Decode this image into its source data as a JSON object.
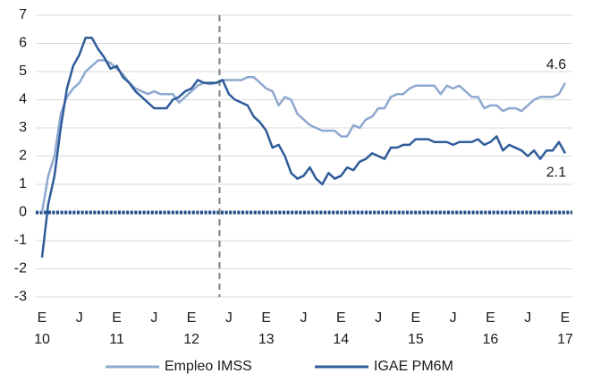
{
  "chart_data": {
    "type": "line",
    "categories": [
      "E",
      null,
      null,
      null,
      null,
      null,
      "J",
      null,
      null,
      null,
      null,
      null,
      "E",
      null,
      null,
      null,
      null,
      null,
      "J",
      null,
      null,
      null,
      null,
      null,
      "E",
      null,
      null,
      null,
      null,
      null,
      "J",
      null,
      null,
      null,
      null,
      null,
      "E",
      null,
      null,
      null,
      null,
      null,
      "J",
      null,
      null,
      null,
      null,
      null,
      "E",
      null,
      null,
      null,
      null,
      null,
      "J",
      null,
      null,
      null,
      null,
      null,
      "E",
      null,
      null,
      null,
      null,
      null,
      "J",
      null,
      null,
      null,
      null,
      null,
      "E",
      null,
      null,
      null,
      null,
      null,
      "J",
      null,
      null,
      null,
      null,
      null,
      "E"
    ],
    "x_group_labels": [
      "10",
      "11",
      "12",
      "13",
      "14",
      "15",
      "16",
      "17"
    ],
    "series": [
      {
        "name": "Empleo IMSS",
        "color": "#8fa8cf",
        "values": [
          0,
          1.3,
          2.0,
          3.5,
          4.1,
          4.4,
          4.6,
          5.0,
          5.2,
          5.4,
          5.4,
          5.3,
          5.1,
          4.9,
          4.6,
          4.4,
          4.3,
          4.2,
          4.3,
          4.2,
          4.2,
          4.2,
          3.9,
          4.1,
          4.3,
          4.5,
          4.6,
          4.55,
          4.6,
          4.7,
          4.7,
          4.7,
          4.7,
          4.8,
          4.8,
          4.6,
          4.4,
          4.3,
          3.8,
          4.1,
          4.0,
          3.5,
          3.3,
          3.1,
          3.0,
          2.9,
          2.9,
          2.9,
          2.7,
          2.7,
          3.1,
          3.0,
          3.3,
          3.4,
          3.7,
          3.7,
          4.1,
          4.2,
          4.2,
          4.4,
          4.5,
          4.5,
          4.5,
          4.5,
          4.2,
          4.5,
          4.4,
          4.5,
          4.3,
          4.1,
          4.1,
          3.7,
          3.8,
          3.8,
          3.6,
          3.7,
          3.7,
          3.6,
          3.8,
          4.0,
          4.1,
          4.1,
          4.1,
          4.2,
          4.6
        ]
      },
      {
        "name": "IGAE PM6M",
        "color": "#2e5c9a",
        "values": [
          -1.6,
          0.3,
          1.3,
          3.0,
          4.4,
          5.2,
          5.6,
          6.2,
          6.2,
          5.8,
          5.5,
          5.1,
          5.2,
          4.8,
          4.6,
          4.3,
          4.1,
          3.9,
          3.7,
          3.7,
          3.7,
          4.0,
          4.1,
          4.3,
          4.4,
          4.7,
          4.6,
          4.6,
          4.6,
          4.7,
          4.2,
          4.0,
          3.9,
          3.8,
          3.4,
          3.2,
          2.9,
          2.3,
          2.4,
          2.0,
          1.4,
          1.2,
          1.3,
          1.6,
          1.2,
          1.0,
          1.4,
          1.2,
          1.3,
          1.6,
          1.5,
          1.8,
          1.9,
          2.1,
          2.0,
          1.9,
          2.3,
          2.3,
          2.4,
          2.4,
          2.6,
          2.6,
          2.6,
          2.5,
          2.5,
          2.5,
          2.4,
          2.5,
          2.5,
          2.5,
          2.6,
          2.4,
          2.5,
          2.7,
          2.2,
          2.4,
          2.3,
          2.2,
          2.0,
          2.2,
          1.9,
          2.2,
          2.2,
          2.5,
          2.1
        ]
      }
    ],
    "ylim": [
      -3,
      7
    ],
    "yticks": [
      -3,
      -2,
      -1,
      0,
      1,
      2,
      3,
      4,
      5,
      6,
      7
    ],
    "grid": true,
    "vline_at": 28.5,
    "legend": "bottom"
  }
}
